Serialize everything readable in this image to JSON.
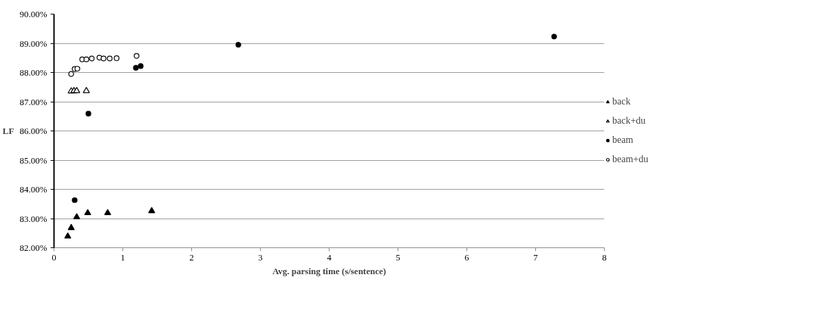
{
  "chart_data": {
    "type": "scatter",
    "xlabel": "Avg. parsing time (s/sentence)",
    "ylabel": "LF",
    "xlim": [
      0,
      8
    ],
    "xticks": [
      0,
      1,
      2,
      3,
      4,
      5,
      6,
      7,
      8
    ],
    "ylim": [
      82,
      90
    ],
    "yticks": [
      {
        "value": 82,
        "label": "82.00%"
      },
      {
        "value": 83,
        "label": "83.00%"
      },
      {
        "value": 84,
        "label": "84.00%"
      },
      {
        "value": 85,
        "label": "85.00%"
      },
      {
        "value": 86,
        "label": "86.00%"
      },
      {
        "value": 87,
        "label": "87.00%"
      },
      {
        "value": 88,
        "label": "88.00%"
      },
      {
        "value": 89,
        "label": "89.00%"
      },
      {
        "value": 90,
        "label": "90.00%"
      }
    ],
    "grid": "y",
    "legend": "right",
    "series": [
      {
        "name": "back",
        "color": "#000000",
        "marker": "triangle",
        "x": [
          0.2,
          0.25,
          0.33,
          0.49,
          0.78,
          1.42
        ],
        "values": [
          82.39,
          82.68,
          83.05,
          83.19,
          83.19,
          83.26
        ]
      },
      {
        "name": "back+du",
        "color": "#ffffff",
        "marker": "triangle",
        "x": [
          0.25,
          0.29,
          0.33,
          0.47
        ],
        "values": [
          87.36,
          87.37,
          87.37,
          87.37
        ]
      },
      {
        "name": "beam",
        "color": "#000000",
        "marker": "circle",
        "x": [
          0.3,
          0.5,
          1.19,
          1.26,
          2.68,
          7.27
        ],
        "values": [
          83.63,
          86.59,
          88.16,
          88.22,
          88.95,
          89.23
        ]
      },
      {
        "name": "beam+du",
        "color": "#ffffff",
        "marker": "circle",
        "x": [
          0.25,
          0.3,
          0.34,
          0.41,
          0.47,
          0.55,
          0.66,
          0.72,
          0.81,
          0.91,
          1.2
        ],
        "values": [
          87.95,
          88.12,
          88.13,
          88.45,
          88.45,
          88.48,
          88.51,
          88.48,
          88.48,
          88.49,
          88.57
        ]
      }
    ]
  }
}
